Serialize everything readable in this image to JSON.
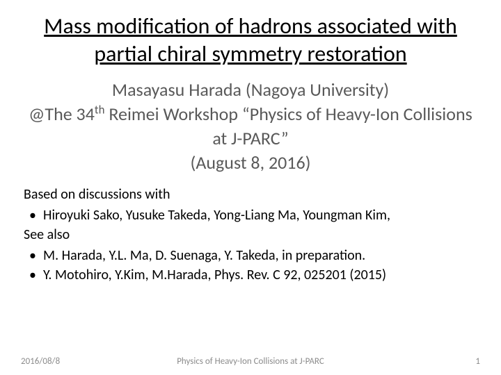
{
  "title": "Mass modification of hadrons associated with partial chiral symmetry restoration",
  "author": "Masayasu Harada (Nagoya University)",
  "venue_prefix": "@The 34",
  "venue_sup": "th",
  "venue_suffix": " Reimei Workshop “Physics of Heavy-Ion Collisions at J-PARC”",
  "date": "(August 8, 2016)",
  "based_intro": "Based on discussions with",
  "collab_line": "Hiroyuki Sako, Yusuke Takeda, Yong-Liang Ma, Youngman Kim,",
  "see_also": "See also",
  "ref1": "M. Harada, Y.L. Ma, D. Suenaga, Y. Takeda, in preparation.",
  "ref2": "Y. Motohiro, Y.Kim, M.Harada, Phys. Rev. C 92, 025201 (2015)",
  "footer_date": "2016/08/8",
  "footer_center": "Physics of Heavy-Ion Collisions at J-PARC",
  "footer_page": "1"
}
